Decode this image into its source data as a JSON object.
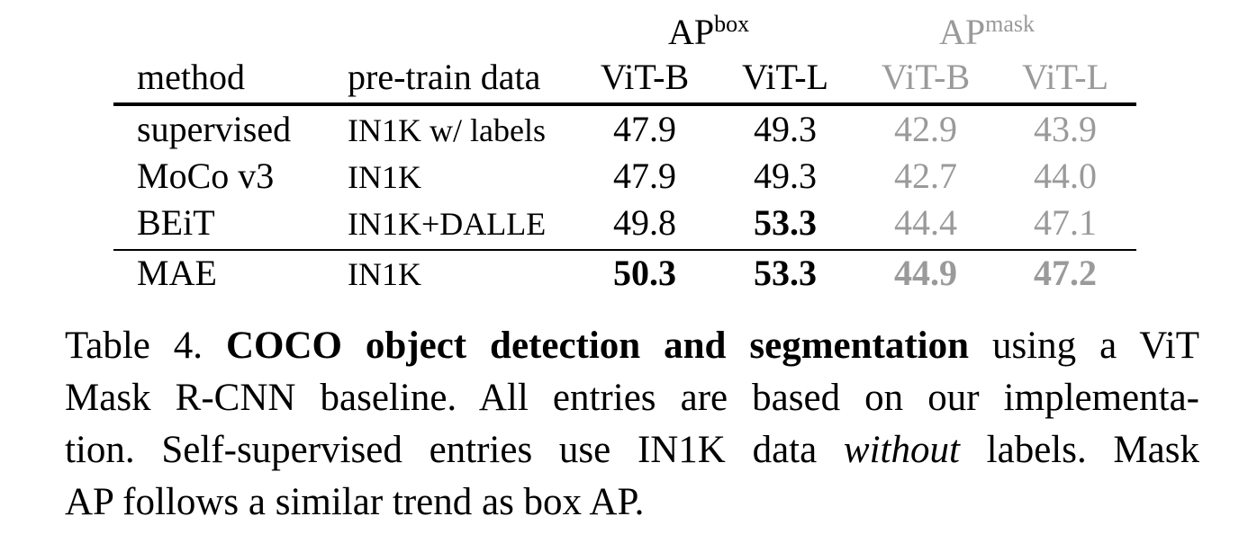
{
  "table": {
    "group_headers": {
      "box": {
        "base": "AP",
        "sup": "box"
      },
      "mask": {
        "base": "AP",
        "sup": "mask"
      }
    },
    "columns": {
      "method": "method",
      "pretrain": "pre-train data",
      "box_vitb": "ViT-B",
      "box_vitl": "ViT-L",
      "mask_vitb": "ViT-B",
      "mask_vitl": "ViT-L"
    },
    "rows": [
      {
        "method": "supervised",
        "pretrain": "IN1K w/ labels",
        "box_vitb": "47.9",
        "box_vitl": "49.3",
        "mask_vitb": "42.9",
        "mask_vitl": "43.9"
      },
      {
        "method": "MoCo v3",
        "pretrain": "IN1K",
        "box_vitb": "47.9",
        "box_vitl": "49.3",
        "mask_vitb": "42.7",
        "mask_vitl": "44.0"
      },
      {
        "method": "BEiT",
        "pretrain": "IN1K+DALLE",
        "box_vitb": "49.8",
        "box_vitl": "53.3",
        "mask_vitb": "44.4",
        "mask_vitl": "47.1"
      },
      {
        "method": "MAE",
        "pretrain": "IN1K",
        "box_vitb": "50.3",
        "box_vitl": "53.3",
        "mask_vitb": "44.9",
        "mask_vitl": "47.2"
      }
    ],
    "colors": {
      "text": "#000000",
      "mask_text": "#9a9a9a"
    }
  },
  "caption": {
    "label": "Table 4.",
    "title": "COCO object detection and segmentation",
    "line1_rest": "using a ViT",
    "line2": "Mask R-CNN baseline. All entries are based on our implementa-",
    "line3_pre": "tion. Self-supervised entries use IN1K data",
    "line3_em": "without",
    "line3_post": "labels. Mask",
    "line4": "AP follows a similar trend as box AP."
  }
}
